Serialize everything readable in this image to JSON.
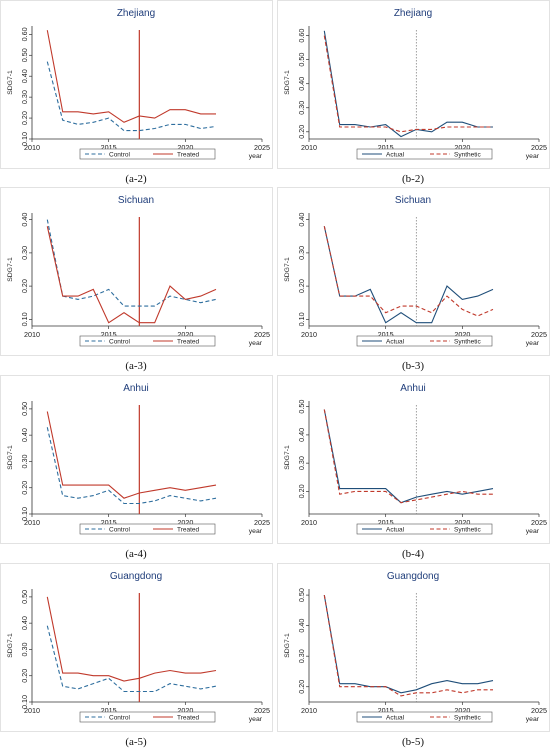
{
  "chart_data": [
    {
      "panel_id": "a-2",
      "caption": "(a-2)",
      "type": "line",
      "title": "Zhejiang",
      "ylabel": "SDG7-1",
      "xlabel": "year",
      "xlim": [
        2010,
        2025
      ],
      "ylim": [
        0.1,
        0.64
      ],
      "xticks": [
        "2010",
        "2015",
        "2020",
        "2025"
      ],
      "yticks": [
        "0.10",
        "0.20",
        "0.30",
        "0.40",
        "0.50",
        "0.60"
      ],
      "vline": 2017,
      "vline_style": "solid",
      "x": [
        2011,
        2012,
        2013,
        2014,
        2015,
        2016,
        2017,
        2018,
        2019,
        2020,
        2021,
        2022
      ],
      "series": [
        {
          "name": "Control",
          "style": "dashed",
          "color": "#2e6e9e",
          "values": [
            0.47,
            0.19,
            0.17,
            0.18,
            0.2,
            0.14,
            0.14,
            0.15,
            0.17,
            0.17,
            0.15,
            0.16
          ]
        },
        {
          "name": "Treated",
          "style": "solid",
          "color": "#c0392b",
          "values": [
            0.62,
            0.23,
            0.23,
            0.22,
            0.23,
            0.18,
            0.21,
            0.2,
            0.24,
            0.24,
            0.22,
            0.22
          ]
        }
      ]
    },
    {
      "panel_id": "b-2",
      "caption": "(b-2)",
      "type": "line",
      "title": "Zhejiang",
      "ylabel": "SDG7-1",
      "xlabel": "year",
      "xlim": [
        2010,
        2025
      ],
      "ylim": [
        0.17,
        0.64
      ],
      "xticks": [
        "2010",
        "2015",
        "2020",
        "2025"
      ],
      "yticks": [
        "0.20",
        "0.30",
        "0.40",
        "0.50",
        "0.60"
      ],
      "vline": 2017,
      "vline_style": "dotted",
      "x": [
        2011,
        2012,
        2013,
        2014,
        2015,
        2016,
        2017,
        2018,
        2019,
        2020,
        2021,
        2022
      ],
      "series": [
        {
          "name": "Actual",
          "style": "solid",
          "color": "#1f4e79",
          "values": [
            0.62,
            0.23,
            0.23,
            0.22,
            0.23,
            0.18,
            0.21,
            0.2,
            0.24,
            0.24,
            0.22,
            0.22
          ]
        },
        {
          "name": "Synthetic",
          "style": "dashed",
          "color": "#c0392b",
          "values": [
            0.6,
            0.22,
            0.22,
            0.22,
            0.22,
            0.2,
            0.21,
            0.21,
            0.22,
            0.22,
            0.22,
            0.22
          ]
        }
      ]
    },
    {
      "panel_id": "a-3",
      "caption": "(a-3)",
      "type": "line",
      "title": "Sichuan",
      "ylabel": "SDG7-1",
      "xlabel": "year",
      "xlim": [
        2010,
        2025
      ],
      "ylim": [
        0.08,
        0.42
      ],
      "xticks": [
        "2010",
        "2015",
        "2020",
        "2025"
      ],
      "yticks": [
        "0.10",
        "0.20",
        "0.30",
        "0.40"
      ],
      "vline": 2017,
      "vline_style": "solid",
      "x": [
        2011,
        2012,
        2013,
        2014,
        2015,
        2016,
        2017,
        2018,
        2019,
        2020,
        2021,
        2022
      ],
      "series": [
        {
          "name": "Control",
          "style": "dashed",
          "color": "#2e6e9e",
          "values": [
            0.4,
            0.17,
            0.16,
            0.17,
            0.19,
            0.14,
            0.14,
            0.14,
            0.17,
            0.16,
            0.15,
            0.16
          ]
        },
        {
          "name": "Treated",
          "style": "solid",
          "color": "#c0392b",
          "values": [
            0.38,
            0.17,
            0.17,
            0.19,
            0.09,
            0.12,
            0.09,
            0.09,
            0.2,
            0.16,
            0.17,
            0.19
          ]
        }
      ]
    },
    {
      "panel_id": "b-3",
      "caption": "(b-3)",
      "type": "line",
      "title": "Sichuan",
      "ylabel": "SDG7-1",
      "xlabel": "year",
      "xlim": [
        2010,
        2025
      ],
      "ylim": [
        0.08,
        0.42
      ],
      "xticks": [
        "2010",
        "2015",
        "2020",
        "2025"
      ],
      "yticks": [
        "0.10",
        "0.20",
        "0.30",
        "0.40"
      ],
      "vline": 2017,
      "vline_style": "dotted",
      "x": [
        2011,
        2012,
        2013,
        2014,
        2015,
        2016,
        2017,
        2018,
        2019,
        2020,
        2021,
        2022
      ],
      "series": [
        {
          "name": "Actual",
          "style": "solid",
          "color": "#1f4e79",
          "values": [
            0.38,
            0.17,
            0.17,
            0.19,
            0.09,
            0.12,
            0.09,
            0.09,
            0.2,
            0.16,
            0.17,
            0.19
          ]
        },
        {
          "name": "Synthetic",
          "style": "dashed",
          "color": "#c0392b",
          "values": [
            0.38,
            0.17,
            0.17,
            0.17,
            0.12,
            0.14,
            0.14,
            0.12,
            0.17,
            0.13,
            0.11,
            0.13
          ]
        }
      ]
    },
    {
      "panel_id": "a-4",
      "caption": "(a-4)",
      "type": "line",
      "title": "Anhui",
      "ylabel": "SDG7-1",
      "xlabel": "year",
      "xlim": [
        2010,
        2025
      ],
      "ylim": [
        0.1,
        0.53
      ],
      "xticks": [
        "2010",
        "2015",
        "2020",
        "2025"
      ],
      "yticks": [
        "0.10",
        "0.20",
        "0.30",
        "0.40",
        "0.50"
      ],
      "vline": 2017,
      "vline_style": "solid",
      "x": [
        2011,
        2012,
        2013,
        2014,
        2015,
        2016,
        2017,
        2018,
        2019,
        2020,
        2021,
        2022
      ],
      "series": [
        {
          "name": "Control",
          "style": "dashed",
          "color": "#2e6e9e",
          "values": [
            0.43,
            0.17,
            0.16,
            0.17,
            0.19,
            0.14,
            0.14,
            0.15,
            0.17,
            0.16,
            0.15,
            0.16
          ]
        },
        {
          "name": "Treated",
          "style": "solid",
          "color": "#c0392b",
          "values": [
            0.49,
            0.21,
            0.21,
            0.21,
            0.21,
            0.16,
            0.18,
            0.19,
            0.2,
            0.19,
            0.2,
            0.21
          ]
        }
      ]
    },
    {
      "panel_id": "b-4",
      "caption": "(b-4)",
      "type": "line",
      "title": "Anhui",
      "ylabel": "SDG7-1",
      "xlabel": "year",
      "xlim": [
        2010,
        2025
      ],
      "ylim": [
        0.12,
        0.52
      ],
      "xticks": [
        "2010",
        "2015",
        "2020",
        "2025"
      ],
      "yticks": [
        "0.20",
        "0.30",
        "0.40",
        "0.50"
      ],
      "vline": 2017,
      "vline_style": "dotted",
      "x": [
        2011,
        2012,
        2013,
        2014,
        2015,
        2016,
        2017,
        2018,
        2019,
        2020,
        2021,
        2022
      ],
      "series": [
        {
          "name": "Actual",
          "style": "solid",
          "color": "#1f4e79",
          "values": [
            0.49,
            0.21,
            0.21,
            0.21,
            0.21,
            0.16,
            0.18,
            0.19,
            0.2,
            0.19,
            0.2,
            0.21
          ]
        },
        {
          "name": "Synthetic",
          "style": "dashed",
          "color": "#c0392b",
          "values": [
            0.49,
            0.19,
            0.2,
            0.2,
            0.2,
            0.16,
            0.17,
            0.18,
            0.19,
            0.2,
            0.19,
            0.19
          ]
        }
      ]
    },
    {
      "panel_id": "a-5",
      "caption": "(a-5)",
      "type": "line",
      "title": "Guangdong",
      "ylabel": "SDG7-1",
      "xlabel": "year",
      "xlim": [
        2010,
        2025
      ],
      "ylim": [
        0.1,
        0.53
      ],
      "xticks": [
        "2010",
        "2015",
        "2020",
        "2025"
      ],
      "yticks": [
        "0.10",
        "0.20",
        "0.30",
        "0.40",
        "0.50"
      ],
      "vline": 2017,
      "vline_style": "solid",
      "x": [
        2011,
        2012,
        2013,
        2014,
        2015,
        2016,
        2017,
        2018,
        2019,
        2020,
        2021,
        2022
      ],
      "series": [
        {
          "name": "Control",
          "style": "dashed",
          "color": "#2e6e9e",
          "values": [
            0.39,
            0.16,
            0.15,
            0.17,
            0.19,
            0.14,
            0.14,
            0.14,
            0.17,
            0.16,
            0.15,
            0.16
          ]
        },
        {
          "name": "Treated",
          "style": "solid",
          "color": "#c0392b",
          "values": [
            0.5,
            0.21,
            0.21,
            0.2,
            0.2,
            0.18,
            0.19,
            0.21,
            0.22,
            0.21,
            0.21,
            0.22
          ]
        }
      ]
    },
    {
      "panel_id": "b-5",
      "caption": "(b-5)",
      "type": "line",
      "title": "Guangdong",
      "ylabel": "SDG7-1",
      "xlabel": "year",
      "xlim": [
        2010,
        2025
      ],
      "ylim": [
        0.15,
        0.52
      ],
      "xticks": [
        "2010",
        "2015",
        "2020",
        "2025"
      ],
      "yticks": [
        "0.20",
        "0.30",
        "0.40",
        "0.50"
      ],
      "vline": 2017,
      "vline_style": "dotted",
      "x": [
        2011,
        2012,
        2013,
        2014,
        2015,
        2016,
        2017,
        2018,
        2019,
        2020,
        2021,
        2022
      ],
      "series": [
        {
          "name": "Actual",
          "style": "solid",
          "color": "#1f4e79",
          "values": [
            0.5,
            0.21,
            0.21,
            0.2,
            0.2,
            0.18,
            0.19,
            0.21,
            0.22,
            0.21,
            0.21,
            0.22
          ]
        },
        {
          "name": "Synthetic",
          "style": "dashed",
          "color": "#c0392b",
          "values": [
            0.5,
            0.2,
            0.2,
            0.2,
            0.2,
            0.17,
            0.18,
            0.18,
            0.19,
            0.18,
            0.19,
            0.19
          ]
        }
      ]
    }
  ]
}
